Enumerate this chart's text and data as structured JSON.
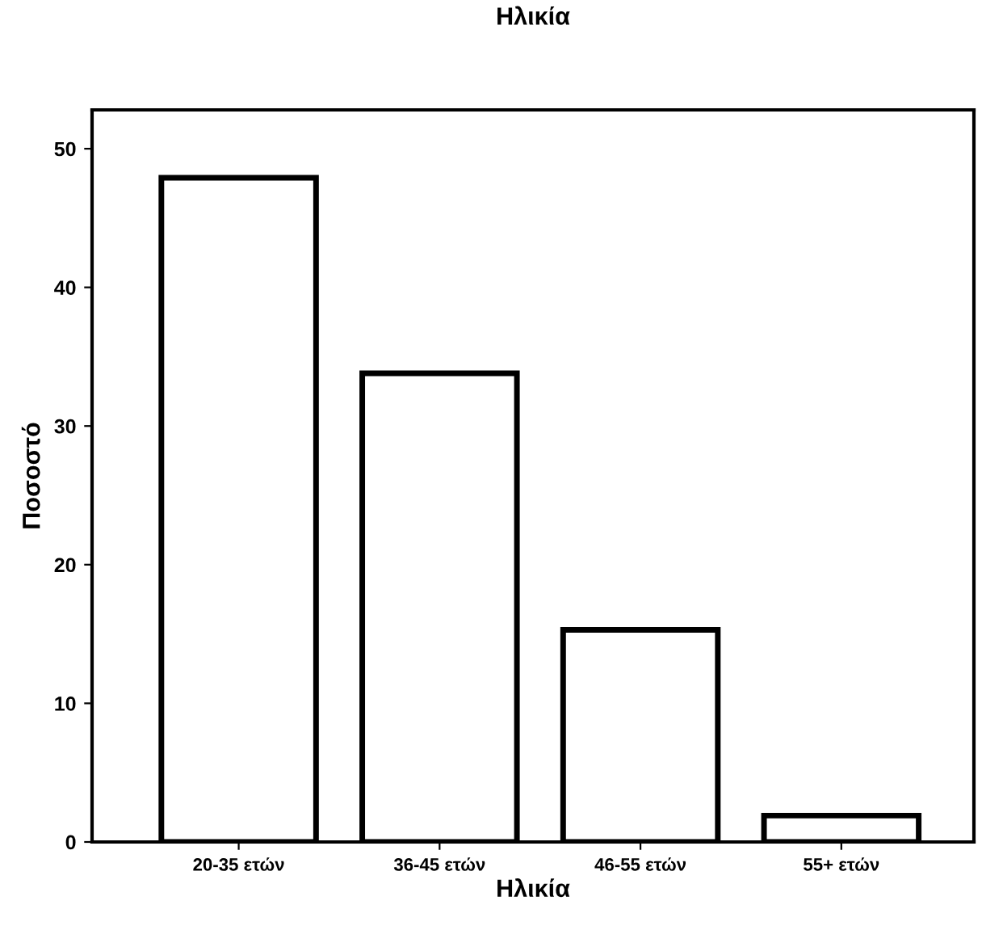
{
  "chart_data": {
    "type": "bar",
    "title": "Ηλικία",
    "xlabel": "Ηλικία",
    "ylabel": "Ποσοστό",
    "categories": [
      "20-35 ετών",
      "36-45 ετών",
      "46-55 ετών",
      "55+ ετών"
    ],
    "values": [
      47.9,
      33.8,
      15.3,
      1.9
    ],
    "color": "#ffffff",
    "ylim": [
      0,
      52.8
    ],
    "yticks": [
      0,
      10,
      20,
      30,
      40,
      50
    ],
    "grid": false,
    "legend": false
  }
}
